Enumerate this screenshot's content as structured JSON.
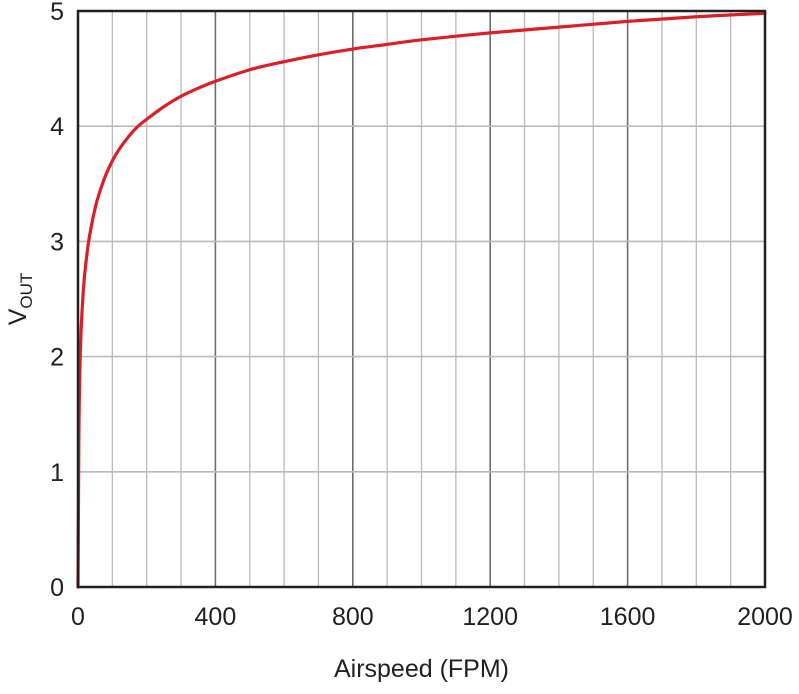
{
  "chart_data": {
    "type": "line",
    "title": "",
    "xlabel": "Airspeed (FPM)",
    "ylabel_main": "V",
    "ylabel_sub": "OUT",
    "xlim": [
      0,
      2000
    ],
    "ylim": [
      0,
      5
    ],
    "x_ticks": [
      0,
      400,
      800,
      1200,
      1600,
      2000
    ],
    "x_tick_labels": [
      "0",
      "400",
      "800",
      "1200",
      "1600",
      "2000"
    ],
    "y_ticks": [
      0,
      1,
      2,
      3,
      4,
      5
    ],
    "y_tick_labels": [
      "0",
      "1",
      "2",
      "3",
      "4",
      "5"
    ],
    "x_major_grid_step": 400,
    "x_minor_grid_step": 100,
    "y_grid_step": 1,
    "grid": true,
    "legend": "none",
    "colors": {
      "curve": "#dc1f26",
      "major_grid": "#6d6e71",
      "minor_grid": "#b9babc",
      "frame": "#231f20"
    },
    "series": [
      {
        "x": [
          0,
          1,
          2,
          3,
          5,
          7,
          10,
          15,
          20,
          30,
          40,
          50,
          60,
          80,
          100,
          120,
          150,
          175,
          200,
          250,
          300,
          350,
          400,
          500,
          600,
          700,
          800,
          900,
          1000,
          1200,
          1400,
          1600,
          1800,
          2000
        ],
        "y": [
          0,
          0.54,
          1.08,
          1.45,
          1.82,
          2.05,
          2.29,
          2.55,
          2.73,
          2.98,
          3.15,
          3.29,
          3.4,
          3.57,
          3.7,
          3.8,
          3.92,
          4.0,
          4.06,
          4.17,
          4.26,
          4.33,
          4.39,
          4.49,
          4.56,
          4.62,
          4.67,
          4.71,
          4.75,
          4.81,
          4.86,
          4.91,
          4.95,
          4.98
        ]
      }
    ]
  }
}
